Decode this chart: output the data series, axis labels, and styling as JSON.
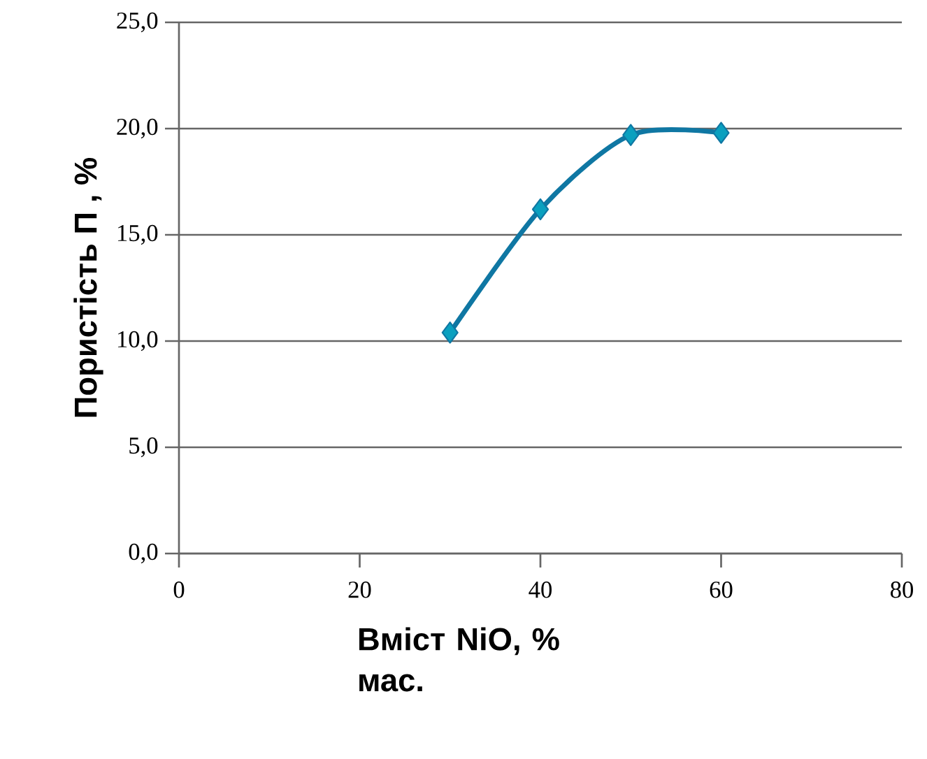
{
  "chart_data": {
    "type": "line",
    "xlabel": "Вміст NiO, % мас.",
    "ylabel": "Пористість П , %",
    "x": [
      30,
      40,
      50,
      60
    ],
    "series": [
      {
        "color": "#0f77a3",
        "values": [
          10.4,
          16.2,
          19.7,
          19.8
        ]
      }
    ],
    "xlim": [
      0,
      80
    ],
    "xticks": [
      0,
      20,
      40,
      60,
      80
    ],
    "ylim": [
      0,
      25
    ],
    "yticks": [
      {
        "value": 0,
        "label": "0,0"
      },
      {
        "value": 5,
        "label": "5,0"
      },
      {
        "value": 10,
        "label": "10,0"
      },
      {
        "value": 15,
        "label": "15,0"
      },
      {
        "value": 20,
        "label": "20,0"
      },
      {
        "value": 25,
        "label": "25,0"
      }
    ],
    "grid": "y",
    "marker": "diamond",
    "line_style": "solid"
  }
}
